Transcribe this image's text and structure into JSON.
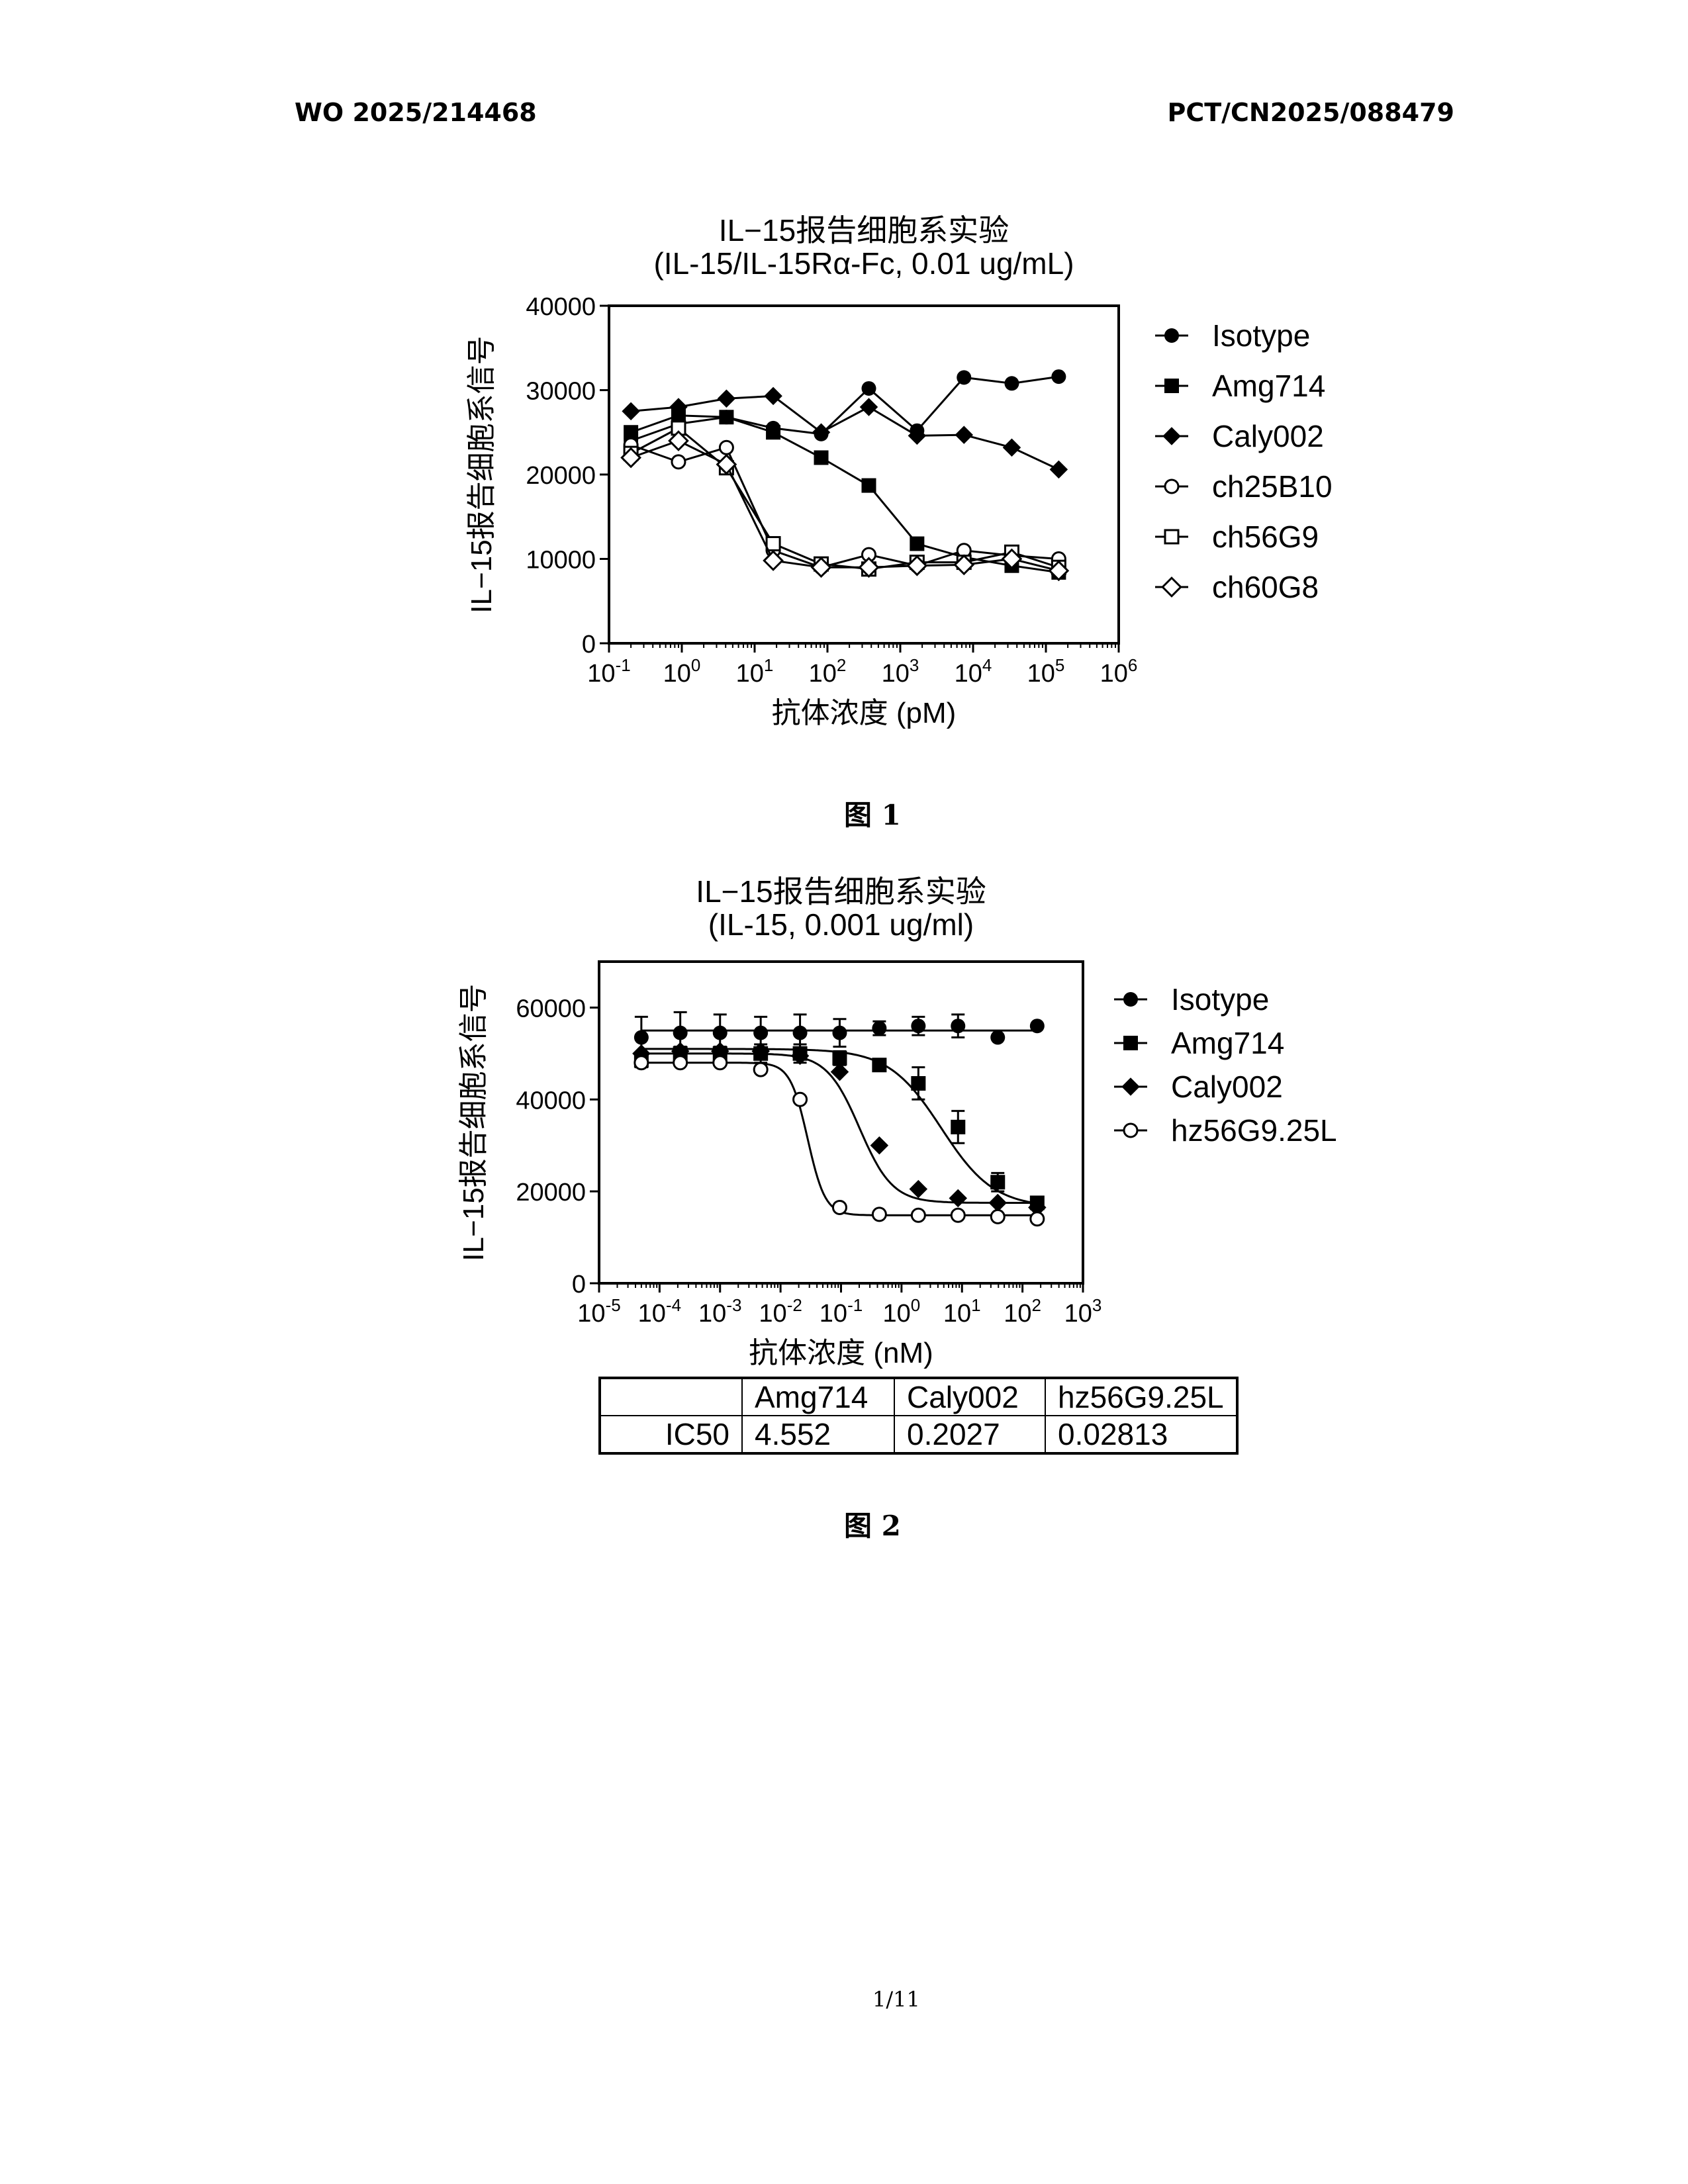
{
  "header": {
    "left": "WO 2025/214468",
    "right": "PCT/CN2025/088479"
  },
  "figure_captions": [
    "图 1",
    "图 2"
  ],
  "page_number": "1/11",
  "ic50_table": {
    "row_label": "IC50",
    "columns": [
      "Amg714",
      "Caly002",
      "hz56G9.25L"
    ],
    "values": [
      "4.552",
      "0.2027",
      "0.02813"
    ]
  },
  "chart_data": [
    {
      "type": "line",
      "title": "IL−15报告细胞系实验",
      "subtitle": "(IL-15/IL-15Rα-Fc, 0.01 ug/mL)",
      "xlabel": "抗体浓度 (pM)",
      "ylabel": "IL−15报告细胞系信号",
      "x_scale": "log10",
      "xlim": [
        0.1,
        1000000
      ],
      "ylim": [
        0,
        40000
      ],
      "yticks": [
        "0",
        "10000",
        "20000",
        "30000",
        "40000"
      ],
      "xtick_exponents": [
        "-1",
        "0",
        "1",
        "2",
        "3",
        "4",
        "5",
        "6"
      ],
      "legend": "right",
      "x": [
        0.2,
        0.9,
        4.1,
        18,
        82,
        370,
        1700,
        7500,
        34000,
        150000
      ],
      "series": [
        {
          "name": "Isotype",
          "marker": "circle-filled",
          "values": [
            24000,
            26000,
            26800,
            25500,
            24800,
            30200,
            25200,
            31500,
            30800,
            31600
          ]
        },
        {
          "name": "Amg714",
          "marker": "square-filled",
          "values": [
            25000,
            27000,
            26800,
            25000,
            22000,
            18700,
            11800,
            10200,
            9200,
            8400
          ]
        },
        {
          "name": "Caly002",
          "marker": "diamond-filled",
          "values": [
            27500,
            28000,
            29000,
            29300,
            25000,
            28000,
            24600,
            24700,
            23200,
            20600
          ]
        },
        {
          "name": "ch25B10",
          "marker": "circle-open",
          "values": [
            23500,
            21500,
            23200,
            11000,
            9000,
            10500,
            9200,
            11000,
            10400,
            10000
          ]
        },
        {
          "name": "ch56G9",
          "marker": "square-open",
          "values": [
            22500,
            25500,
            20800,
            11800,
            9400,
            8800,
            9600,
            9600,
            10800,
            9000
          ]
        },
        {
          "name": "ch60G8",
          "marker": "diamond-open",
          "values": [
            22000,
            24000,
            21200,
            9800,
            9000,
            9000,
            9200,
            9300,
            10000,
            8600
          ]
        }
      ]
    },
    {
      "type": "scatter",
      "title": "IL−15报告细胞系实验",
      "subtitle": "(IL-15, 0.001 ug/ml)",
      "xlabel": "抗体浓度 (nM)",
      "ylabel": "IL−15报告细胞系信号",
      "x_scale": "log10",
      "xlim": [
        1e-05,
        1000
      ],
      "ylim": [
        0,
        70000
      ],
      "yticks": [
        "0",
        "20000",
        "40000",
        "60000"
      ],
      "xtick_exponents": [
        "-5",
        "-4",
        "-3",
        "-2",
        "-1",
        "0",
        "1",
        "2",
        "3"
      ],
      "legend": "right",
      "x": [
        5e-05,
        0.00022,
        0.001,
        0.0047,
        0.021,
        0.095,
        0.43,
        1.9,
        8.6,
        39,
        175
      ],
      "series": [
        {
          "name": "Isotype",
          "marker": "circle-filled",
          "values": [
            53500,
            54500,
            54500,
            54500,
            54500,
            54500,
            55500,
            56000,
            56000,
            53500,
            56000
          ],
          "errors": [
            4500,
            4500,
            4000,
            3500,
            4000,
            3000,
            1500,
            2000,
            2500,
            0,
            0
          ],
          "fit_level": 55000
        },
        {
          "name": "Amg714",
          "marker": "square-filled",
          "values": [
            48500,
            50000,
            50000,
            50000,
            50000,
            49000,
            47500,
            43500,
            34000,
            22000,
            17500
          ],
          "errors": [
            1500,
            1500,
            1500,
            2000,
            2000,
            1500,
            1000,
            3500,
            3500,
            2000,
            1000
          ],
          "fit_top": 51000,
          "fit_bottom": 16500,
          "ic50": 4.552,
          "hill": 1.0
        },
        {
          "name": "Caly002",
          "marker": "diamond-filled",
          "values": [
            50000,
            50500,
            50500,
            50500,
            49500,
            46000,
            30000,
            20500,
            18500,
            17500,
            16500
          ],
          "fit_top": 50000,
          "fit_bottom": 17500,
          "ic50": 0.2027,
          "hill": 1.6
        },
        {
          "name": "hz56G9.25L",
          "marker": "circle-open",
          "values": [
            48000,
            48000,
            48000,
            46500,
            40000,
            16500,
            15000,
            14800,
            14800,
            14500,
            14000
          ],
          "fit_top": 48000,
          "fit_bottom": 14800,
          "ic50": 0.02813,
          "hill": 3.0
        }
      ]
    }
  ]
}
